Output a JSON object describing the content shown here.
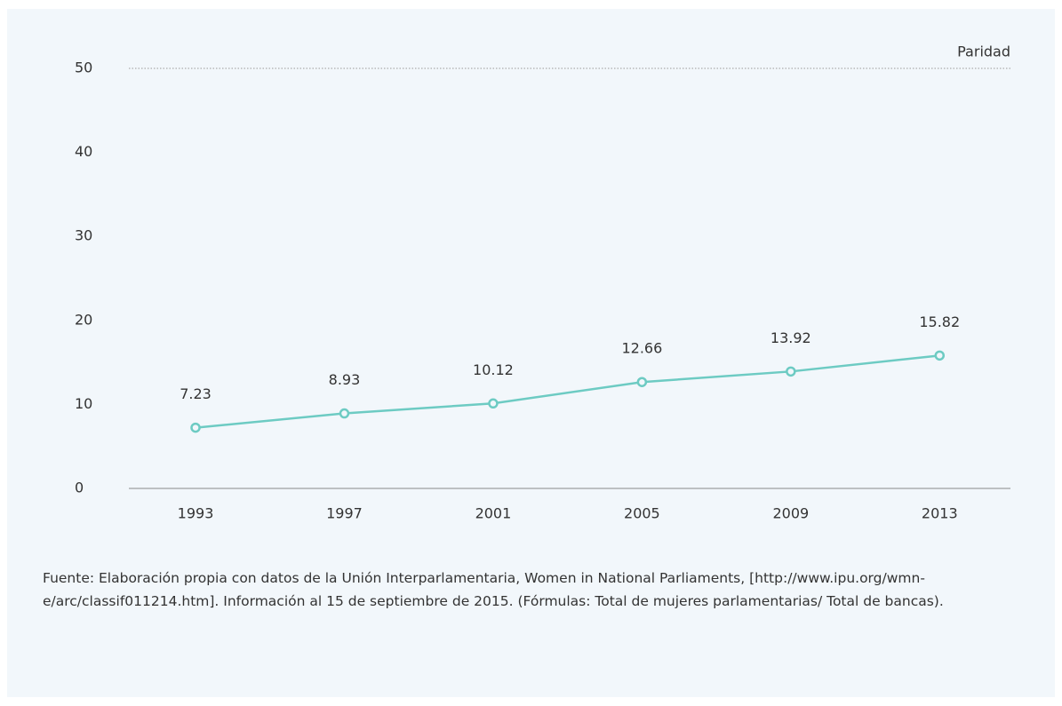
{
  "chart_data": {
    "type": "line",
    "categories": [
      "1993",
      "1997",
      "2001",
      "2005",
      "2009",
      "2013"
    ],
    "series": [
      {
        "color": "#6dcbc3",
        "values": [
          7.23,
          8.93,
          10.12,
          12.66,
          13.92,
          15.82
        ]
      }
    ],
    "ylim": [
      0,
      50
    ],
    "yticks": [
      0,
      10,
      20,
      30,
      40,
      50
    ],
    "reference_line": {
      "value": 50,
      "label": "Paridad"
    },
    "note": "Fuente: Elaboración propia con datos de la  Unión Interparlamentaria, Women in National Parliaments, [http://www.ipu.org/wmn-e/arc/classif011214.htm]. Información al 15 de septiembre de 2015. (Fórmulas: Total de mujeres parlamentarias/ Total de bancas)."
  }
}
